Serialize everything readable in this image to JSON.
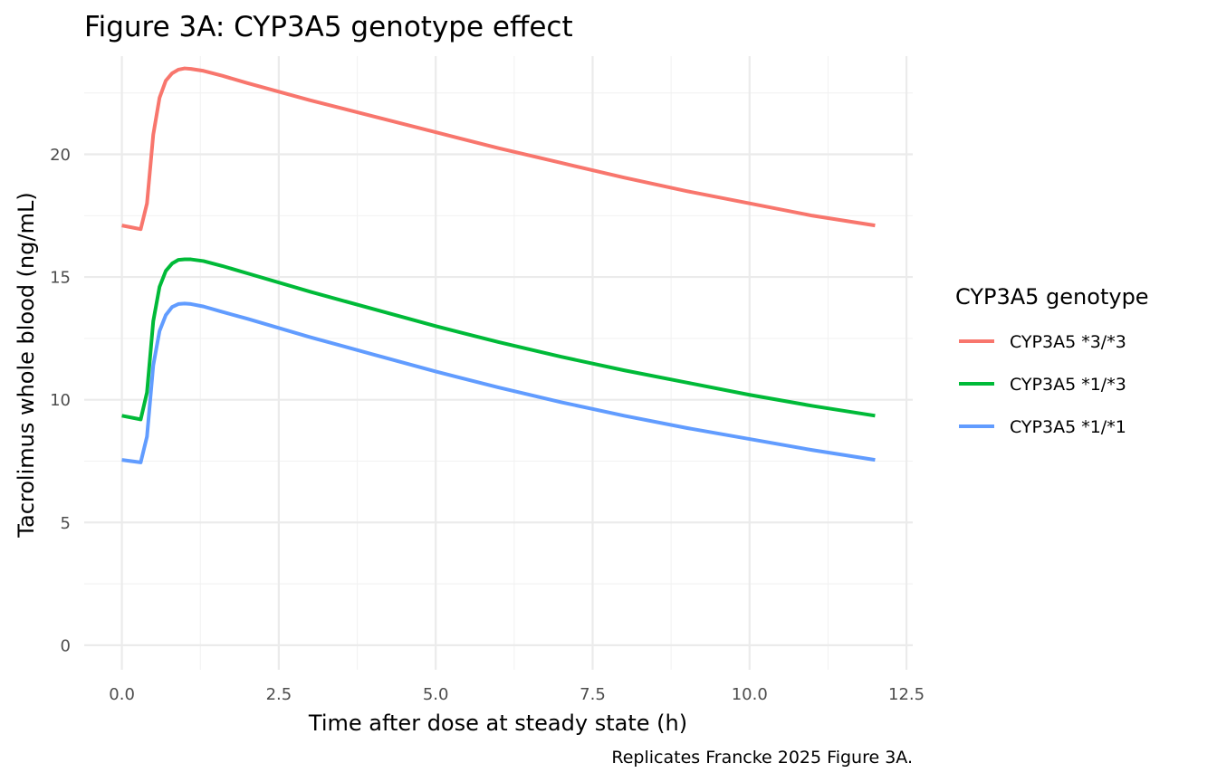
{
  "chart_data": {
    "type": "line",
    "title": "Figure 3A: CYP3A5 genotype effect",
    "xlabel": "Time after dose at steady state (h)",
    "ylabel": "Tacrolimus whole blood (ng/mL)",
    "caption": "Replicates Francke 2025 Figure 3A.",
    "xlim": [
      -0.6,
      12.6
    ],
    "ylim": [
      -1.0,
      24.0
    ],
    "x_ticks": [
      0,
      2.5,
      5,
      7.5,
      10,
      12.5
    ],
    "x_tick_labels": [
      "0.0",
      "2.5",
      "5.0",
      "7.5",
      "10.0",
      "12.5"
    ],
    "y_ticks": [
      0,
      5,
      10,
      15,
      20
    ],
    "y_tick_labels": [
      "0",
      "5",
      "10",
      "15",
      "20"
    ],
    "grid": true,
    "legend": {
      "title": "CYP3A5 genotype",
      "position": "right"
    },
    "series": [
      {
        "name": "CYP3A5 *3/*3",
        "color": "#F8766D",
        "points": [
          [
            0,
            17.1
          ],
          [
            0.3,
            16.95
          ],
          [
            0.4,
            18.0
          ],
          [
            0.5,
            20.8
          ],
          [
            0.6,
            22.3
          ],
          [
            0.7,
            23.0
          ],
          [
            0.8,
            23.3
          ],
          [
            0.9,
            23.45
          ],
          [
            1.0,
            23.5
          ],
          [
            1.1,
            23.48
          ],
          [
            1.3,
            23.4
          ],
          [
            1.6,
            23.2
          ],
          [
            2,
            22.9
          ],
          [
            3,
            22.2
          ],
          [
            4,
            21.55
          ],
          [
            5,
            20.9
          ],
          [
            6,
            20.25
          ],
          [
            7,
            19.65
          ],
          [
            8,
            19.05
          ],
          [
            9,
            18.5
          ],
          [
            10,
            18.0
          ],
          [
            11,
            17.5
          ],
          [
            12,
            17.1
          ]
        ]
      },
      {
        "name": "CYP3A5 *1/*3",
        "color": "#00BA38",
        "points": [
          [
            0,
            9.35
          ],
          [
            0.3,
            9.2
          ],
          [
            0.4,
            10.3
          ],
          [
            0.5,
            13.2
          ],
          [
            0.6,
            14.6
          ],
          [
            0.7,
            15.25
          ],
          [
            0.8,
            15.55
          ],
          [
            0.9,
            15.7
          ],
          [
            1.0,
            15.72
          ],
          [
            1.1,
            15.72
          ],
          [
            1.3,
            15.65
          ],
          [
            1.6,
            15.45
          ],
          [
            2,
            15.15
          ],
          [
            3,
            14.4
          ],
          [
            4,
            13.7
          ],
          [
            5,
            13.0
          ],
          [
            6,
            12.35
          ],
          [
            7,
            11.75
          ],
          [
            8,
            11.2
          ],
          [
            9,
            10.7
          ],
          [
            10,
            10.2
          ],
          [
            11,
            9.75
          ],
          [
            12,
            9.35
          ]
        ]
      },
      {
        "name": "CYP3A5 *1/*1",
        "color": "#619CFF",
        "points": [
          [
            0,
            7.55
          ],
          [
            0.3,
            7.45
          ],
          [
            0.4,
            8.5
          ],
          [
            0.5,
            11.4
          ],
          [
            0.6,
            12.8
          ],
          [
            0.7,
            13.45
          ],
          [
            0.8,
            13.78
          ],
          [
            0.9,
            13.9
          ],
          [
            1.0,
            13.92
          ],
          [
            1.1,
            13.9
          ],
          [
            1.3,
            13.8
          ],
          [
            1.6,
            13.58
          ],
          [
            2,
            13.3
          ],
          [
            3,
            12.55
          ],
          [
            4,
            11.85
          ],
          [
            5,
            11.15
          ],
          [
            6,
            10.5
          ],
          [
            7,
            9.9
          ],
          [
            8,
            9.35
          ],
          [
            9,
            8.85
          ],
          [
            10,
            8.4
          ],
          [
            11,
            7.95
          ],
          [
            12,
            7.55
          ]
        ]
      }
    ]
  }
}
